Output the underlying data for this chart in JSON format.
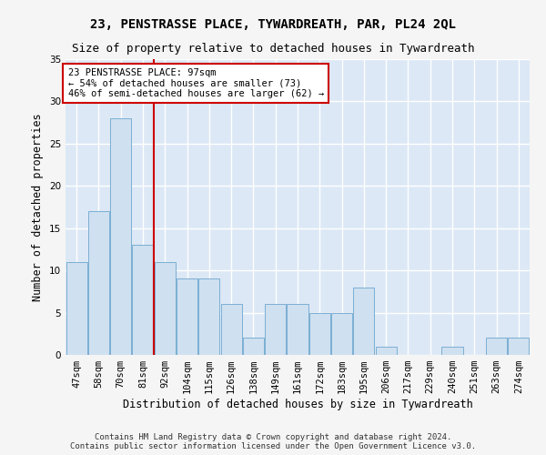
{
  "title": "23, PENSTRASSE PLACE, TYWARDREATH, PAR, PL24 2QL",
  "subtitle": "Size of property relative to detached houses in Tywardreath",
  "xlabel": "Distribution of detached houses by size in Tywardreath",
  "ylabel": "Number of detached properties",
  "categories": [
    "47sqm",
    "58sqm",
    "70sqm",
    "81sqm",
    "92sqm",
    "104sqm",
    "115sqm",
    "126sqm",
    "138sqm",
    "149sqm",
    "161sqm",
    "172sqm",
    "183sqm",
    "195sqm",
    "206sqm",
    "217sqm",
    "229sqm",
    "240sqm",
    "251sqm",
    "263sqm",
    "274sqm"
  ],
  "values": [
    11,
    17,
    28,
    13,
    11,
    9,
    9,
    6,
    2,
    6,
    6,
    5,
    5,
    8,
    1,
    0,
    0,
    1,
    0,
    2,
    2
  ],
  "bar_color": "#cfe0f0",
  "bar_edge_color": "#7bafd4",
  "ylim": [
    0,
    35
  ],
  "yticks": [
    0,
    5,
    10,
    15,
    20,
    25,
    30,
    35
  ],
  "annotation_line1": "23 PENSTRASSE PLACE: 97sqm",
  "annotation_line2": "← 54% of detached houses are smaller (73)",
  "annotation_line3": "46% of semi-detached houses are larger (62) →",
  "vline_bin_after": 3,
  "footer_line1": "Contains HM Land Registry data © Crown copyright and database right 2024.",
  "footer_line2": "Contains public sector information licensed under the Open Government Licence v3.0.",
  "fig_bg_color": "#f5f5f5",
  "plot_bg_color": "#dce8f5",
  "annotation_box_color": "#ffffff",
  "annotation_box_edge": "#cc0000",
  "vline_color": "#cc0000",
  "grid_color": "#ffffff",
  "title_fontsize": 10,
  "subtitle_fontsize": 9,
  "tick_fontsize": 7.5,
  "ylabel_fontsize": 8.5,
  "xlabel_fontsize": 8.5,
  "annotation_fontsize": 7.5,
  "footer_fontsize": 6.5
}
